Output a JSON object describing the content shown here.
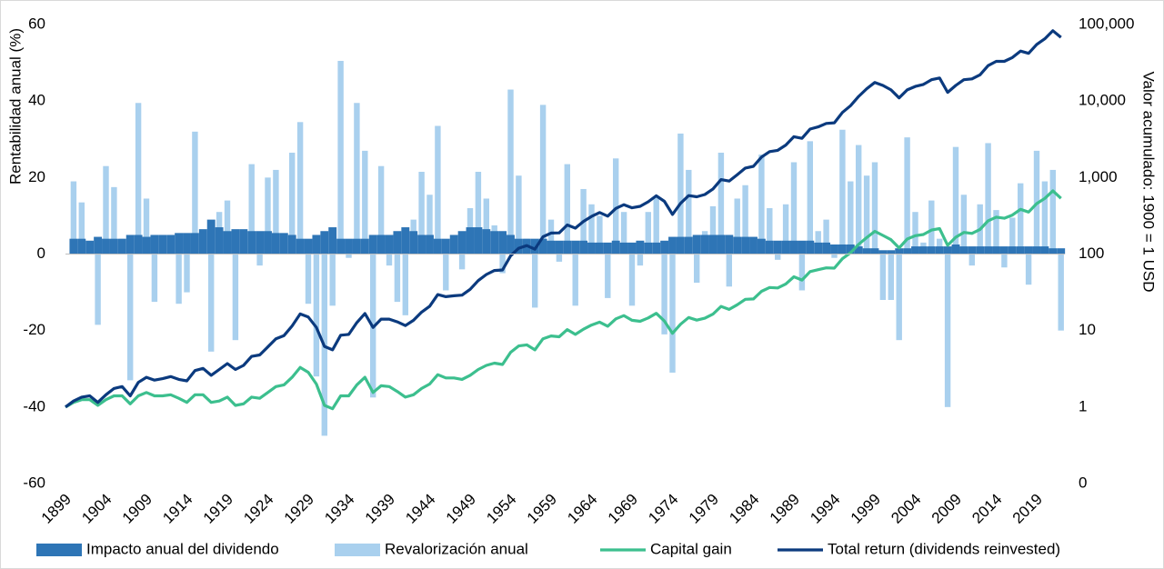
{
  "chart_data": {
    "type": "combo",
    "y_label": "Rentabilidad anual (%)",
    "y2_label": "Valor acumulado: 1900 = 1 USD",
    "ylim": [
      -60,
      60
    ],
    "yticks": [
      -60,
      -40,
      -20,
      0,
      20,
      40,
      60
    ],
    "y2lim": [
      0.1,
      100000
    ],
    "y2_log": true,
    "y2ticks": [
      {
        "value": 0.1,
        "label": "0"
      },
      1,
      10,
      100,
      {
        "value": 1000,
        "label": "1,000"
      },
      {
        "value": 10000,
        "label": "10,000"
      },
      {
        "value": 100000,
        "label": "100,000"
      }
    ],
    "legend": "bottom",
    "categories": [
      "1899",
      null,
      null,
      null,
      null,
      "1904",
      null,
      null,
      null,
      null,
      "1909",
      null,
      null,
      null,
      null,
      "1914",
      null,
      null,
      null,
      null,
      "1919",
      null,
      null,
      null,
      null,
      "1924",
      null,
      null,
      null,
      null,
      "1929",
      null,
      null,
      null,
      null,
      "1934",
      null,
      null,
      null,
      null,
      "1939",
      null,
      null,
      null,
      null,
      "1944",
      null,
      null,
      null,
      null,
      "1949",
      null,
      null,
      null,
      null,
      "1954",
      null,
      null,
      null,
      null,
      "1959",
      null,
      null,
      null,
      null,
      "1964",
      null,
      null,
      null,
      null,
      "1969",
      null,
      null,
      null,
      null,
      "1974",
      null,
      null,
      null,
      null,
      "1979",
      null,
      null,
      null,
      null,
      "1984",
      null,
      null,
      null,
      null,
      "1989",
      null,
      null,
      null,
      null,
      "1994",
      null,
      null,
      null,
      null,
      "1999",
      null,
      null,
      null,
      null,
      "2004",
      null,
      null,
      null,
      null,
      "2009",
      null,
      null,
      null,
      null,
      "2014",
      null,
      null,
      null,
      null,
      "2019",
      null,
      null,
      null
    ],
    "series": [
      {
        "name": "Impacto anual del dividendo",
        "type": "bar",
        "color": "#2e75b6",
        "values": [
          null,
          4,
          4,
          3.5,
          4.5,
          4,
          4,
          4,
          5,
          5,
          4.5,
          5,
          5,
          5,
          5.5,
          5.5,
          5.5,
          6.5,
          9,
          7,
          6,
          6.5,
          6.5,
          6,
          6,
          6,
          5.5,
          5.5,
          5,
          4,
          4,
          5,
          6,
          7,
          4,
          4,
          4,
          4,
          5,
          5,
          5,
          6,
          7,
          6,
          5,
          5,
          4,
          4,
          5,
          6,
          7,
          7,
          6.5,
          6,
          6,
          5,
          4,
          4,
          4,
          4,
          3.5,
          3.5,
          3.5,
          3.5,
          3.5,
          3,
          3,
          3,
          3.5,
          3,
          3,
          3.5,
          3,
          3,
          3.5,
          4.5,
          4.5,
          4.5,
          5,
          5,
          5,
          5,
          5,
          4.5,
          4.5,
          4.5,
          4,
          3.5,
          3.5,
          3.5,
          3.5,
          3.5,
          3.5,
          3,
          3,
          2.5,
          2.5,
          2.5,
          2,
          1.5,
          1.5,
          1,
          1,
          1.5,
          1.5,
          2,
          2,
          2,
          2,
          2,
          2.5,
          2,
          2,
          2,
          2,
          2,
          2,
          2,
          2,
          2,
          2,
          2,
          1.5,
          1.5
        ]
      },
      {
        "name": "Revalorización anual",
        "type": "bar",
        "color": "#a9d0ee",
        "values": [
          null,
          19,
          13.5,
          2,
          -18.5,
          23,
          17.5,
          4,
          -33,
          39.5,
          14.5,
          -12.5,
          1,
          2,
          -13,
          -10,
          32,
          4,
          -25.5,
          11,
          14,
          -22.5,
          5,
          23.5,
          -3,
          20,
          22,
          4,
          26.5,
          34.5,
          -13,
          -32,
          -47.5,
          -13.5,
          50.5,
          -1,
          39.5,
          27,
          -37.5,
          23,
          -3,
          -12.5,
          -16,
          9,
          21.5,
          15.5,
          33.5,
          -9.5,
          1,
          -4,
          12,
          21.5,
          14.5,
          7.5,
          -5,
          43,
          20.5,
          4,
          -14,
          39,
          9,
          -2,
          23.5,
          -13.5,
          17,
          13,
          10,
          -11.5,
          25,
          11,
          -13.5,
          -3,
          11,
          15,
          -21,
          -31,
          31.5,
          22,
          -7.5,
          6,
          12.5,
          26.5,
          -8.5,
          14.5,
          18,
          1,
          26,
          12,
          -1.5,
          13,
          24,
          -9.5,
          29.5,
          6,
          9,
          -1,
          32.5,
          19,
          28.5,
          20.5,
          24,
          -12,
          -12,
          -22.5,
          30.5,
          11,
          3,
          14,
          4,
          -40,
          28,
          15.5,
          -3,
          13,
          29,
          11.5,
          -3.5,
          9.5,
          18.5,
          -8,
          27,
          19,
          22,
          -20
        ]
      },
      {
        "name": "Capital gain",
        "type": "line",
        "axis": "y2",
        "color": "#3cbf8e",
        "values": [
          1,
          1.15,
          1.25,
          1.25,
          1.05,
          1.25,
          1.4,
          1.4,
          1.1,
          1.4,
          1.55,
          1.4,
          1.4,
          1.45,
          1.3,
          1.15,
          1.45,
          1.45,
          1.15,
          1.2,
          1.35,
          1.05,
          1.1,
          1.35,
          1.3,
          1.55,
          1.85,
          1.95,
          2.45,
          3.3,
          2.85,
          2.0,
          1.05,
          0.95,
          1.4,
          1.4,
          1.95,
          2.45,
          1.55,
          1.9,
          1.85,
          1.6,
          1.35,
          1.45,
          1.75,
          2.0,
          2.65,
          2.4,
          2.4,
          2.3,
          2.6,
          3.1,
          3.5,
          3.75,
          3.6,
          5.2,
          6.3,
          6.5,
          5.6,
          7.8,
          8.5,
          8.3,
          10.3,
          8.9,
          10.4,
          11.8,
          12.9,
          11.4,
          14.2,
          15.7,
          13.6,
          13.2,
          14.6,
          16.8,
          13.3,
          9.2,
          12.1,
          14.8,
          13.7,
          14.5,
          16.4,
          20.7,
          18.9,
          21.7,
          25.6,
          25.9,
          32.6,
          36.5,
          36.0,
          40.7,
          50.5,
          45.7,
          59,
          62.5,
          66,
          65.5,
          87,
          104,
          134,
          164,
          198,
          175,
          154,
          120,
          157,
          174,
          180,
          206,
          215,
          130,
          166,
          192,
          186,
          210,
          272,
          304,
          294,
          323,
          384,
          354,
          457,
          533,
          671,
          535
        ]
      },
      {
        "name": "Total return (dividends reinvested)",
        "type": "line",
        "axis": "y2",
        "color": "#0b3a7e",
        "values": [
          1,
          1.2,
          1.35,
          1.4,
          1.15,
          1.45,
          1.75,
          1.85,
          1.4,
          2.1,
          2.45,
          2.25,
          2.35,
          2.5,
          2.3,
          2.2,
          3.0,
          3.2,
          2.6,
          3.1,
          3.7,
          3.1,
          3.5,
          4.6,
          4.8,
          6.1,
          7.8,
          8.6,
          11.5,
          16.5,
          15,
          11,
          6.2,
          5.6,
          8.7,
          8.9,
          12.7,
          16.7,
          11,
          14.1,
          14.1,
          13,
          11.6,
          13.6,
          17.4,
          20.8,
          29.5,
          27.7,
          28.5,
          29,
          34.6,
          45,
          54,
          61,
          62,
          95,
          119,
          129,
          116,
          168,
          188,
          189,
          240,
          218,
          267,
          310,
          349,
          313,
          395,
          442,
          403,
          420,
          482,
          578,
          489,
          330,
          460,
          580,
          560,
          600,
          710,
          940,
          900,
          1090,
          1330,
          1400,
          1850,
          2180,
          2270,
          2660,
          3420,
          3250,
          4300,
          4600,
          5100,
          5200,
          7100,
          8700,
          11500,
          14500,
          17500,
          16000,
          14000,
          11000,
          14000,
          15500,
          16500,
          19000,
          20000,
          13000,
          16000,
          19000,
          19500,
          22000,
          29000,
          33000,
          33000,
          37000,
          45000,
          42000,
          55000,
          65000,
          83000,
          68000
        ]
      }
    ]
  }
}
